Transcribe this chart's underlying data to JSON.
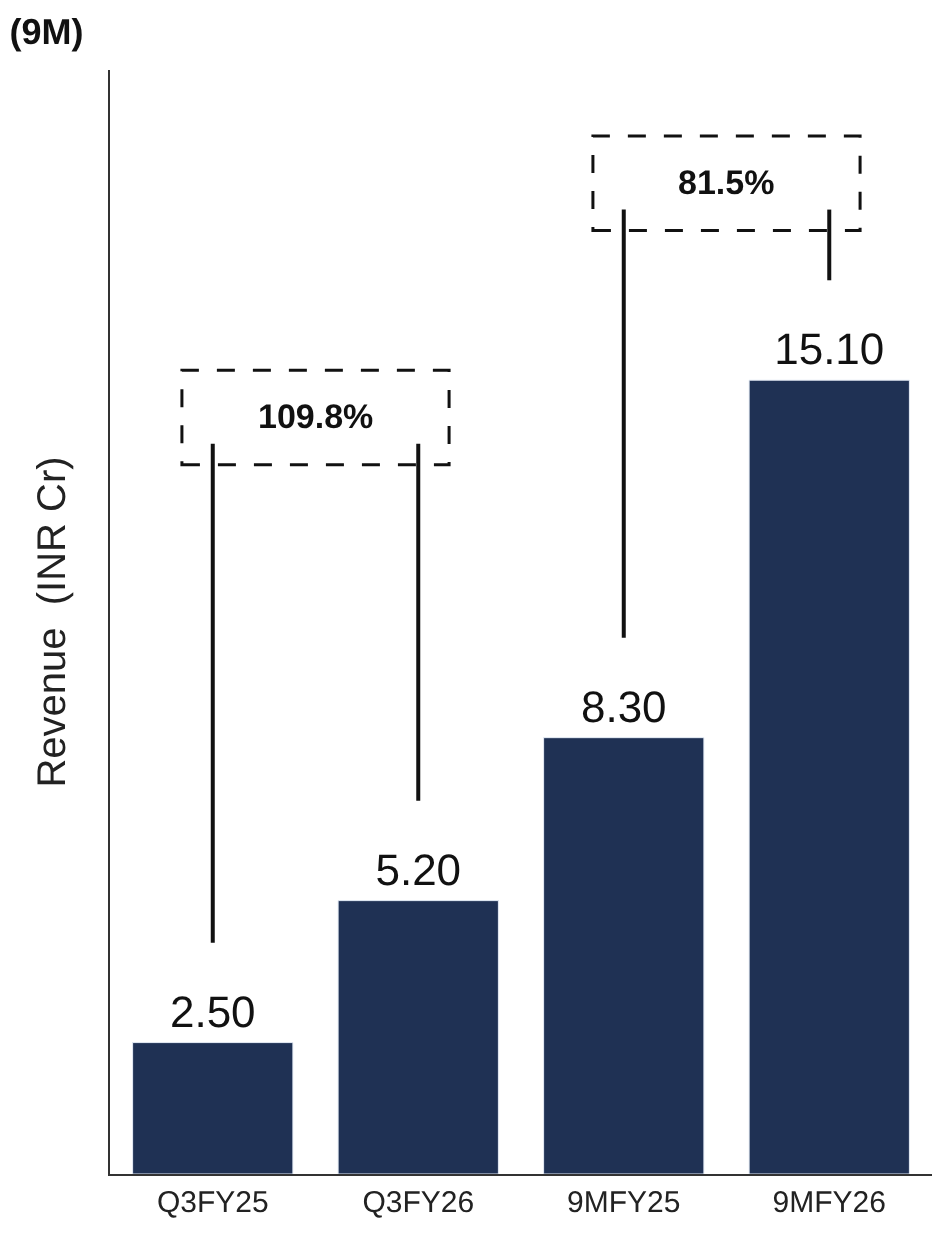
{
  "chart_data": {
    "type": "bar",
    "title": "(9M)",
    "ylabel": "Revenue  (INR Cr)",
    "categories": [
      "Q3FY25",
      "Q3FY26",
      "9MFY25",
      "9MFY26"
    ],
    "values": [
      2.5,
      5.2,
      8.3,
      15.1
    ],
    "value_labels": [
      "2.50",
      "5.20",
      "8.30",
      "15.10"
    ],
    "color": "#1f3154",
    "ylim": [
      0,
      21
    ],
    "tick_labels": "x",
    "legend": false,
    "annotations": [
      "109.8%",
      "81.5%"
    ]
  }
}
